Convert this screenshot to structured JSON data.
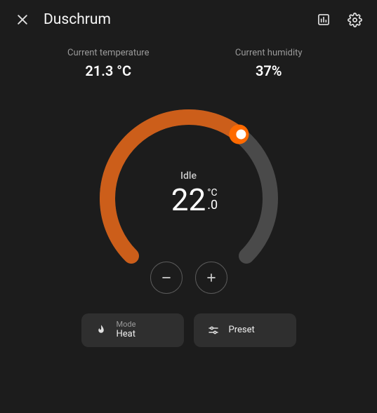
{
  "header": {
    "title": "Duschrum"
  },
  "stats": {
    "temp_label": "Current temperature",
    "temp_value": "21.3 °C",
    "humidity_label": "Current humidity",
    "humidity_value": "37%"
  },
  "dial": {
    "status": "Idle",
    "target_int": "22",
    "target_unit": "°C",
    "target_dec": ".0",
    "arc_start_deg": 135,
    "arc_end_deg": 405,
    "arc_fill_deg": 308,
    "radius": 116,
    "stroke_width": 22,
    "track_color": "#4a4a4a",
    "fill_color": "#cc5e1a",
    "handle_fill": "#ff6a00",
    "handle_dot": "#ffffff",
    "background": "#1c1c1c"
  },
  "buttons": {
    "mode_label": "Mode",
    "mode_value": "Heat",
    "preset_label": "Preset"
  }
}
